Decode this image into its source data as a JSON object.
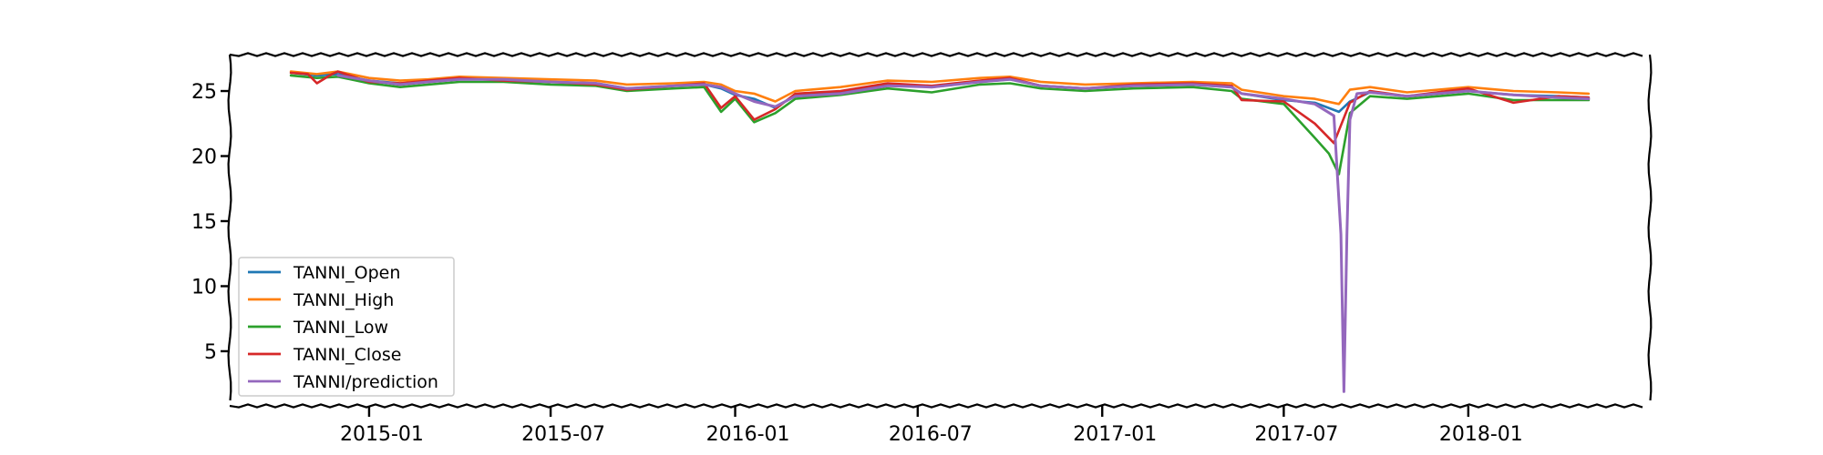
{
  "chart_data": {
    "type": "line",
    "title": "",
    "xlabel": "",
    "ylabel": "",
    "x_ticks": [
      "2015-01",
      "2015-07",
      "2016-01",
      "2016-07",
      "2017-01",
      "2017-07",
      "2018-01"
    ],
    "y_ticks": [
      "5",
      "10",
      "15",
      "20",
      "25"
    ],
    "xlim": [
      "2014-08-15",
      "2018-07-01"
    ],
    "ylim": [
      0.8,
      27.8
    ],
    "grid": false,
    "legend": "lower-left",
    "series": [
      {
        "name": "TANNI_Open",
        "color": "#1f77b4",
        "points": [
          [
            "2014-10-15",
            26.4
          ],
          [
            "2014-11-10",
            26.2
          ],
          [
            "2014-12-01",
            26.3
          ],
          [
            "2015-01-01",
            25.8
          ],
          [
            "2015-02-01",
            25.6
          ],
          [
            "2015-03-01",
            25.7
          ],
          [
            "2015-04-01",
            25.9
          ],
          [
            "2015-05-15",
            25.9
          ],
          [
            "2015-07-01",
            25.7
          ],
          [
            "2015-08-15",
            25.6
          ],
          [
            "2015-09-15",
            25.2
          ],
          [
            "2015-11-01",
            25.4
          ],
          [
            "2015-12-01",
            25.5
          ],
          [
            "2015-12-18",
            25.2
          ],
          [
            "2016-01-01",
            24.7
          ],
          [
            "2016-01-20",
            24.4
          ],
          [
            "2016-02-10",
            23.7
          ],
          [
            "2016-03-01",
            24.7
          ],
          [
            "2016-04-15",
            24.9
          ],
          [
            "2016-06-01",
            25.5
          ],
          [
            "2016-07-15",
            25.3
          ],
          [
            "2016-09-01",
            25.7
          ],
          [
            "2016-10-01",
            25.9
          ],
          [
            "2016-11-01",
            25.4
          ],
          [
            "2016-12-15",
            25.2
          ],
          [
            "2017-02-01",
            25.4
          ],
          [
            "2017-04-01",
            25.5
          ],
          [
            "2017-05-10",
            25.3
          ],
          [
            "2017-05-20",
            24.8
          ],
          [
            "2017-07-01",
            24.3
          ],
          [
            "2017-08-01",
            24.1
          ],
          [
            "2017-08-25",
            23.4
          ],
          [
            "2017-09-05",
            24.2
          ],
          [
            "2017-09-25",
            24.9
          ],
          [
            "2017-11-01",
            24.6
          ],
          [
            "2018-01-01",
            25.0
          ],
          [
            "2018-02-15",
            24.7
          ],
          [
            "2018-04-01",
            24.6
          ],
          [
            "2018-05-01",
            24.5
          ]
        ]
      },
      {
        "name": "TANNI_High",
        "color": "#ff7f0e",
        "points": [
          [
            "2014-10-15",
            26.5
          ],
          [
            "2014-11-10",
            26.3
          ],
          [
            "2014-12-01",
            26.5
          ],
          [
            "2015-01-01",
            26.0
          ],
          [
            "2015-02-01",
            25.8
          ],
          [
            "2015-03-01",
            25.9
          ],
          [
            "2015-04-01",
            26.1
          ],
          [
            "2015-05-15",
            26.0
          ],
          [
            "2015-07-01",
            25.9
          ],
          [
            "2015-08-15",
            25.8
          ],
          [
            "2015-09-15",
            25.5
          ],
          [
            "2015-11-01",
            25.6
          ],
          [
            "2015-12-01",
            25.7
          ],
          [
            "2015-12-18",
            25.5
          ],
          [
            "2016-01-01",
            25.0
          ],
          [
            "2016-01-20",
            24.8
          ],
          [
            "2016-02-10",
            24.2
          ],
          [
            "2016-03-01",
            25.0
          ],
          [
            "2016-04-15",
            25.3
          ],
          [
            "2016-06-01",
            25.8
          ],
          [
            "2016-07-15",
            25.7
          ],
          [
            "2016-09-01",
            26.0
          ],
          [
            "2016-10-01",
            26.1
          ],
          [
            "2016-11-01",
            25.7
          ],
          [
            "2016-12-15",
            25.5
          ],
          [
            "2017-02-01",
            25.6
          ],
          [
            "2017-04-01",
            25.7
          ],
          [
            "2017-05-10",
            25.6
          ],
          [
            "2017-05-20",
            25.1
          ],
          [
            "2017-07-01",
            24.6
          ],
          [
            "2017-08-01",
            24.4
          ],
          [
            "2017-08-25",
            24.0
          ],
          [
            "2017-09-05",
            25.1
          ],
          [
            "2017-09-25",
            25.3
          ],
          [
            "2017-11-01",
            24.9
          ],
          [
            "2018-01-01",
            25.3
          ],
          [
            "2018-02-15",
            25.0
          ],
          [
            "2018-04-01",
            24.9
          ],
          [
            "2018-05-01",
            24.8
          ]
        ]
      },
      {
        "name": "TANNI_Low",
        "color": "#2ca02c",
        "points": [
          [
            "2014-10-15",
            26.2
          ],
          [
            "2014-11-10",
            26.0
          ],
          [
            "2014-12-01",
            26.1
          ],
          [
            "2015-01-01",
            25.6
          ],
          [
            "2015-02-01",
            25.3
          ],
          [
            "2015-03-01",
            25.5
          ],
          [
            "2015-04-01",
            25.7
          ],
          [
            "2015-05-15",
            25.7
          ],
          [
            "2015-07-01",
            25.5
          ],
          [
            "2015-08-15",
            25.4
          ],
          [
            "2015-09-15",
            25.0
          ],
          [
            "2015-11-01",
            25.2
          ],
          [
            "2015-12-01",
            25.3
          ],
          [
            "2015-12-18",
            23.4
          ],
          [
            "2016-01-01",
            24.4
          ],
          [
            "2016-01-20",
            22.6
          ],
          [
            "2016-02-10",
            23.3
          ],
          [
            "2016-03-01",
            24.4
          ],
          [
            "2016-04-15",
            24.7
          ],
          [
            "2016-06-01",
            25.2
          ],
          [
            "2016-07-15",
            24.9
          ],
          [
            "2016-09-01",
            25.5
          ],
          [
            "2016-10-01",
            25.6
          ],
          [
            "2016-11-01",
            25.2
          ],
          [
            "2016-12-15",
            25.0
          ],
          [
            "2017-02-01",
            25.2
          ],
          [
            "2017-04-01",
            25.3
          ],
          [
            "2017-05-10",
            25.0
          ],
          [
            "2017-05-20",
            24.4
          ],
          [
            "2017-07-01",
            24.0
          ],
          [
            "2017-08-01",
            21.4
          ],
          [
            "2017-08-15",
            20.2
          ],
          [
            "2017-08-25",
            18.6
          ],
          [
            "2017-09-05",
            23.3
          ],
          [
            "2017-09-25",
            24.6
          ],
          [
            "2017-11-01",
            24.4
          ],
          [
            "2018-01-01",
            24.8
          ],
          [
            "2018-02-15",
            24.3
          ],
          [
            "2018-04-01",
            24.3
          ],
          [
            "2018-05-01",
            24.3
          ]
        ]
      },
      {
        "name": "TANNI_Close",
        "color": "#d62728",
        "points": [
          [
            "2014-10-15",
            26.4
          ],
          [
            "2014-11-01",
            26.3
          ],
          [
            "2014-11-10",
            25.6
          ],
          [
            "2014-11-25",
            26.3
          ],
          [
            "2014-12-01",
            26.5
          ],
          [
            "2015-01-01",
            25.7
          ],
          [
            "2015-02-01",
            25.6
          ],
          [
            "2015-03-01",
            25.8
          ],
          [
            "2015-04-01",
            26.0
          ],
          [
            "2015-05-15",
            25.8
          ],
          [
            "2015-07-01",
            25.7
          ],
          [
            "2015-08-15",
            25.5
          ],
          [
            "2015-09-15",
            25.1
          ],
          [
            "2015-11-01",
            25.4
          ],
          [
            "2015-12-01",
            25.6
          ],
          [
            "2015-12-18",
            23.7
          ],
          [
            "2016-01-01",
            24.6
          ],
          [
            "2016-01-20",
            22.8
          ],
          [
            "2016-02-10",
            23.6
          ],
          [
            "2016-03-01",
            24.8
          ],
          [
            "2016-04-15",
            25.0
          ],
          [
            "2016-06-01",
            25.6
          ],
          [
            "2016-07-15",
            25.4
          ],
          [
            "2016-09-01",
            25.8
          ],
          [
            "2016-10-01",
            26.0
          ],
          [
            "2016-11-01",
            25.4
          ],
          [
            "2016-12-15",
            25.2
          ],
          [
            "2017-02-01",
            25.5
          ],
          [
            "2017-04-01",
            25.6
          ],
          [
            "2017-05-10",
            25.4
          ],
          [
            "2017-05-20",
            24.3
          ],
          [
            "2017-07-01",
            24.2
          ],
          [
            "2017-08-01",
            22.5
          ],
          [
            "2017-08-20",
            21.0
          ],
          [
            "2017-09-05",
            24.1
          ],
          [
            "2017-09-25",
            25.0
          ],
          [
            "2017-11-01",
            24.6
          ],
          [
            "2018-01-01",
            25.2
          ],
          [
            "2018-02-15",
            24.1
          ],
          [
            "2018-04-01",
            24.6
          ],
          [
            "2018-05-01",
            24.5
          ]
        ]
      },
      {
        "name": "TANNI/prediction",
        "color": "#9467bd",
        "points": [
          [
            "2014-12-01",
            26.2
          ],
          [
            "2015-01-01",
            25.8
          ],
          [
            "2015-02-01",
            25.5
          ],
          [
            "2015-03-01",
            25.7
          ],
          [
            "2015-04-01",
            25.9
          ],
          [
            "2015-05-15",
            25.9
          ],
          [
            "2015-07-01",
            25.7
          ],
          [
            "2015-08-15",
            25.6
          ],
          [
            "2015-09-15",
            25.2
          ],
          [
            "2015-11-01",
            25.4
          ],
          [
            "2015-12-01",
            25.5
          ],
          [
            "2015-12-18",
            25.3
          ],
          [
            "2016-01-01",
            24.8
          ],
          [
            "2016-01-20",
            24.2
          ],
          [
            "2016-02-10",
            23.8
          ],
          [
            "2016-03-01",
            24.6
          ],
          [
            "2016-04-15",
            24.8
          ],
          [
            "2016-06-01",
            25.4
          ],
          [
            "2016-07-15",
            25.3
          ],
          [
            "2016-09-01",
            25.7
          ],
          [
            "2016-10-01",
            25.9
          ],
          [
            "2016-11-01",
            25.4
          ],
          [
            "2016-12-15",
            25.2
          ],
          [
            "2017-02-01",
            25.4
          ],
          [
            "2017-04-01",
            25.5
          ],
          [
            "2017-05-10",
            25.3
          ],
          [
            "2017-05-20",
            24.8
          ],
          [
            "2017-07-01",
            24.4
          ],
          [
            "2017-08-01",
            24.0
          ],
          [
            "2017-08-20",
            23.1
          ],
          [
            "2017-08-27",
            14.0
          ],
          [
            "2017-08-30",
            1.9
          ],
          [
            "2017-09-02",
            14.0
          ],
          [
            "2017-09-05",
            22.8
          ],
          [
            "2017-09-12",
            24.8
          ],
          [
            "2017-09-25",
            24.9
          ],
          [
            "2017-11-01",
            24.6
          ],
          [
            "2018-01-01",
            25.0
          ],
          [
            "2018-02-15",
            24.7
          ],
          [
            "2018-04-01",
            24.5
          ],
          [
            "2018-05-01",
            24.4
          ]
        ]
      }
    ]
  }
}
